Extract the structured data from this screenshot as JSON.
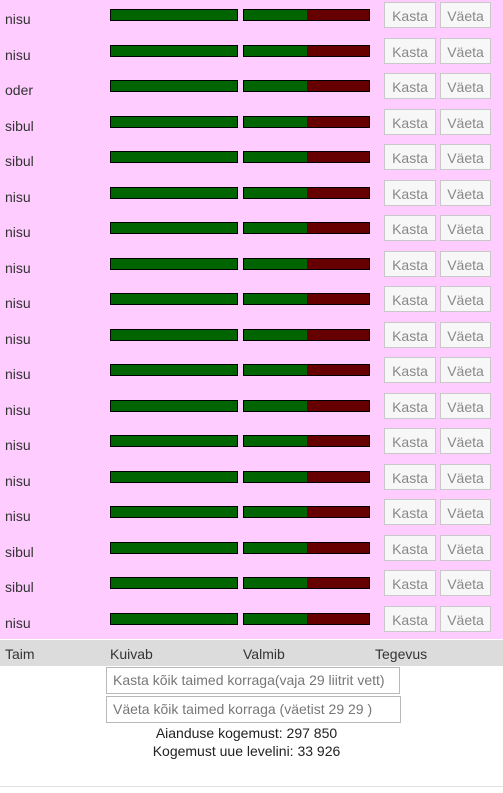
{
  "plants": [
    {
      "name": "nisu",
      "dry": 1.0,
      "ready": 0.5
    },
    {
      "name": "nisu",
      "dry": 1.0,
      "ready": 0.5
    },
    {
      "name": "oder",
      "dry": 1.0,
      "ready": 0.5
    },
    {
      "name": "sibul",
      "dry": 1.0,
      "ready": 0.5
    },
    {
      "name": "sibul",
      "dry": 1.0,
      "ready": 0.5
    },
    {
      "name": "nisu",
      "dry": 1.0,
      "ready": 0.5
    },
    {
      "name": "nisu",
      "dry": 1.0,
      "ready": 0.5
    },
    {
      "name": "nisu",
      "dry": 1.0,
      "ready": 0.5
    },
    {
      "name": "nisu",
      "dry": 1.0,
      "ready": 0.5
    },
    {
      "name": "nisu",
      "dry": 1.0,
      "ready": 0.5
    },
    {
      "name": "nisu",
      "dry": 1.0,
      "ready": 0.5
    },
    {
      "name": "nisu",
      "dry": 1.0,
      "ready": 0.5
    },
    {
      "name": "nisu",
      "dry": 1.0,
      "ready": 0.5
    },
    {
      "name": "nisu",
      "dry": 1.0,
      "ready": 0.5
    },
    {
      "name": "nisu",
      "dry": 1.0,
      "ready": 0.5
    },
    {
      "name": "sibul",
      "dry": 1.0,
      "ready": 0.5
    },
    {
      "name": "sibul",
      "dry": 1.0,
      "ready": 0.5
    },
    {
      "name": "nisu",
      "dry": 1.0,
      "ready": 0.5
    }
  ],
  "buttons": {
    "water": "Kasta",
    "fertilize": "Väeta"
  },
  "header": {
    "plant": "Taim",
    "dries": "Kuivab",
    "ready": "Valmib",
    "action": "Tegevus"
  },
  "bulk": {
    "water_all": "Kasta kõik taimed korraga(vaja 29 liitrit vett)",
    "fertilize_all": "Väeta kõik taimed korraga (väetist  29 29 )"
  },
  "stats": {
    "garden_exp": "Aianduse kogemust: 297 850",
    "next_level_exp": "Kogemust uue levelini: 33 926"
  },
  "colors": {
    "row_bg": "#ffccff",
    "bar_green": "#006400",
    "bar_red": "#660000"
  }
}
